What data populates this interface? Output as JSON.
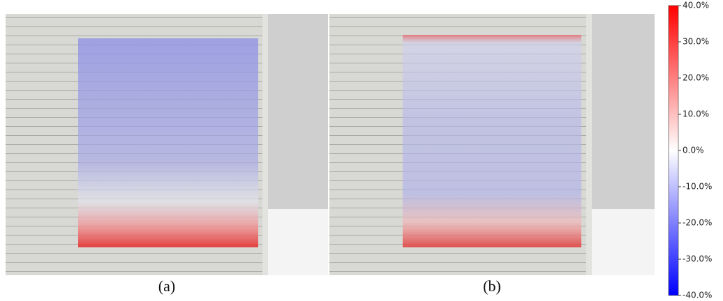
{
  "panels": [
    {
      "label": "(a)"
    },
    {
      "label": "(b)"
    }
  ],
  "colorbar": {
    "lim": [
      -40,
      40
    ],
    "ticks": [
      {
        "value": 40,
        "label": "40.0%"
      },
      {
        "value": 30,
        "label": "30.0%"
      },
      {
        "value": 20,
        "label": "20.0%"
      },
      {
        "value": 10,
        "label": "10.0%"
      },
      {
        "value": 0,
        "label": "0.0%"
      },
      {
        "value": -10,
        "label": "-10.0%"
      },
      {
        "value": -20,
        "label": "-20.0%"
      },
      {
        "value": -30,
        "label": "-30.0%"
      },
      {
        "value": -40,
        "label": "-40.0%"
      }
    ]
  }
}
